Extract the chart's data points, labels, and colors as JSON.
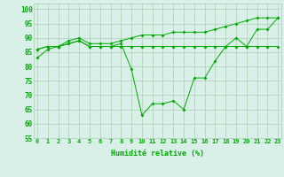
{
  "x": [
    0,
    1,
    2,
    3,
    4,
    5,
    6,
    7,
    8,
    9,
    10,
    11,
    12,
    13,
    14,
    15,
    16,
    17,
    18,
    19,
    20,
    21,
    22,
    23
  ],
  "line1": [
    83,
    86,
    87,
    88,
    89,
    87,
    87,
    87,
    88,
    79,
    63,
    67,
    67,
    68,
    65,
    76,
    76,
    82,
    87,
    90,
    87,
    93,
    93,
    97
  ],
  "line2": [
    86,
    87,
    87,
    88,
    89,
    87,
    87,
    87,
    87,
    87,
    87,
    87,
    87,
    87,
    87,
    87,
    87,
    87,
    87,
    87,
    87,
    87,
    87,
    87
  ],
  "line3": [
    86,
    87,
    87,
    89,
    90,
    88,
    88,
    88,
    89,
    90,
    91,
    91,
    91,
    92,
    92,
    92,
    92,
    93,
    94,
    95,
    96,
    97,
    97,
    97
  ],
  "line_color": "#00aa00",
  "bg_color": "#d8f0e8",
  "grid_color": "#b0ccb8",
  "xlabel": "Humidité relative (%)",
  "ylim": [
    55,
    102
  ],
  "yticks": [
    55,
    60,
    65,
    70,
    75,
    80,
    85,
    90,
    95,
    100
  ],
  "xlim": [
    -0.3,
    23.3
  ]
}
